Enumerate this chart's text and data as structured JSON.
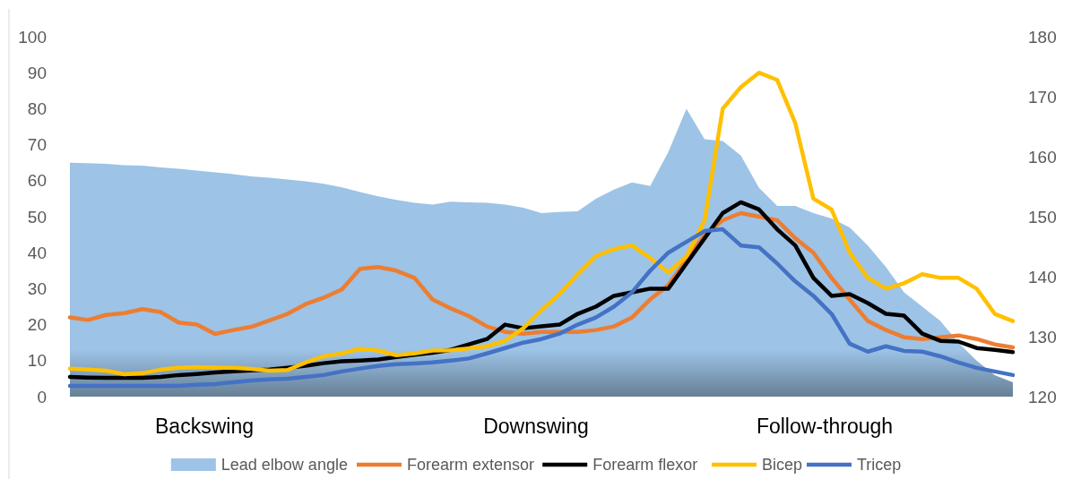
{
  "chart_data": {
    "type": "line",
    "categories": [
      null,
      null,
      null,
      null,
      null,
      null,
      null,
      null,
      null,
      null,
      null,
      null,
      null,
      null,
      null,
      null,
      null,
      null,
      null,
      null,
      null,
      null,
      null,
      null,
      null,
      null,
      null,
      null,
      null,
      null,
      null,
      null,
      null,
      null,
      null,
      null,
      null,
      null,
      null,
      null,
      null,
      null,
      null,
      null,
      null,
      null,
      null,
      null,
      null,
      null,
      null,
      null,
      null
    ],
    "series": [
      {
        "name": "Lead elbow angle",
        "type": "area",
        "axis": "y2",
        "color": "#9dc3e6",
        "values": [
          159,
          158.9,
          158.8,
          158.6,
          158.5,
          158.2,
          158,
          157.7,
          157.4,
          157.1,
          156.7,
          156.5,
          156.2,
          155.9,
          155.5,
          154.9,
          154.1,
          153.4,
          152.8,
          152.3,
          152,
          152.5,
          152.4,
          152.3,
          152,
          151.5,
          150.6,
          150.8,
          150.9,
          153,
          154.5,
          155.7,
          155.1,
          160.8,
          168,
          162.9,
          162.6,
          160.2,
          154.8,
          151.8,
          151.8,
          150.6,
          149.7,
          148.2,
          145.2,
          141.6,
          137.4,
          135,
          132.6,
          129,
          126,
          123.6,
          122.4
        ]
      },
      {
        "name": "Forearm extensor",
        "color": "#ed7d31",
        "values": [
          22,
          21.3,
          22.7,
          23.2,
          24.3,
          23.5,
          20.6,
          20,
          17.4,
          18.5,
          19.4,
          21.2,
          23,
          25.7,
          27.5,
          29.8,
          35.5,
          36,
          35,
          33,
          27,
          24.5,
          22.4,
          19.5,
          18,
          17.5,
          18,
          18,
          18,
          18.5,
          19.5,
          22,
          27,
          31,
          38,
          45,
          49,
          51,
          50,
          49,
          44,
          40,
          33,
          27,
          21,
          18.5,
          16.5,
          16,
          16.5,
          17,
          16,
          14.5,
          13.7
        ]
      },
      {
        "name": "Forearm flexor",
        "color": "#000000",
        "values": [
          5.5,
          5.3,
          5.2,
          5.2,
          5.2,
          5.5,
          6,
          6.3,
          6.7,
          7,
          7.3,
          7.5,
          8,
          8.6,
          9.3,
          9.8,
          10,
          10.3,
          11,
          11.6,
          12.2,
          13,
          14.5,
          16,
          20,
          19,
          19.5,
          20,
          23,
          25,
          28,
          29,
          30,
          30,
          37,
          44,
          51,
          54,
          52,
          46.5,
          42,
          33,
          28,
          28.5,
          26,
          23,
          22.5,
          17.5,
          15.5,
          15.3,
          13.5,
          13,
          12.4
        ]
      },
      {
        "name": "Bicep",
        "color": "#ffc000",
        "values": [
          7.8,
          7.5,
          7.2,
          6.2,
          6.5,
          7.5,
          8,
          8.2,
          8.1,
          8,
          7.7,
          7.2,
          7.4,
          9.5,
          11.2,
          12,
          13.3,
          12.8,
          11.5,
          12,
          12.8,
          12.9,
          13.4,
          14,
          15.5,
          19,
          24,
          28.5,
          34,
          39,
          41,
          42,
          38.5,
          34.5,
          39,
          49,
          80,
          86,
          90,
          88,
          76,
          55,
          52,
          40,
          33,
          30,
          31.5,
          34,
          33,
          33,
          30,
          23,
          21
        ]
      },
      {
        "name": "Tricep",
        "color": "#4472c4",
        "values": [
          3,
          3,
          3,
          3,
          3,
          3,
          3,
          3.3,
          3.5,
          4,
          4.5,
          4.8,
          5,
          5.5,
          6,
          7,
          7.8,
          8.5,
          9,
          9.2,
          9.5,
          10,
          10.6,
          12,
          13.5,
          15,
          16,
          17.5,
          20,
          22,
          25,
          29,
          35,
          40,
          43,
          46,
          46.5,
          42,
          41.5,
          37,
          32,
          28,
          23,
          14.7,
          12.5,
          14,
          12.7,
          12.5,
          11.2,
          9.5,
          8,
          7,
          6
        ]
      }
    ],
    "ylim": [
      0,
      100
    ],
    "yticks": [
      0,
      10,
      20,
      30,
      40,
      50,
      60,
      70,
      80,
      90,
      100
    ],
    "y2lim": [
      120,
      180
    ],
    "y2ticks": [
      120,
      130,
      140,
      150,
      160,
      170,
      180
    ],
    "annotations": [
      "Backswing",
      "Downswing",
      "Follow-through"
    ],
    "legend": "bottom",
    "grid": false
  }
}
